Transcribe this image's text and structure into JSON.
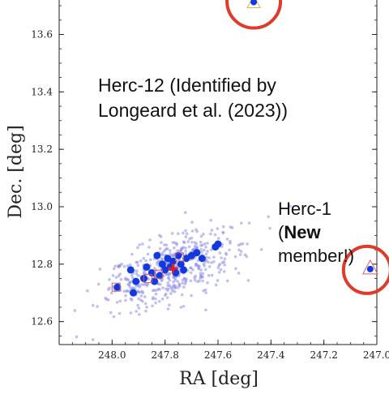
{
  "chart_data": {
    "type": "scatter",
    "xlabel": "RA [deg]",
    "ylabel": "Dec. [deg]",
    "xlim": [
      248.2,
      247.0
    ],
    "ylim": [
      12.52,
      13.72
    ],
    "x_ticks": [
      "248.0",
      "247.8",
      "247.6",
      "247.4",
      "247.2",
      "247.0"
    ],
    "y_ticks": [
      "12.6",
      "12.8",
      "13.0",
      "13.2",
      "13.4",
      "13.6"
    ],
    "annotations": {
      "herc12_line1": "Herc-12 (Identified by",
      "herc12_line2": "Longeard et al. (2023))",
      "herc1_line1": "Herc-1",
      "herc1_open": "(",
      "herc1_bold": "New",
      "herc1_line3": "member!)"
    },
    "colors": {
      "members": "#1239e0",
      "background": "#8c8ce6",
      "circle": "#e03a2a",
      "center": "#e02020",
      "square": "#d45a6a",
      "triangle_top": "#d9b84a",
      "triangle_right": "#d06070"
    },
    "background_cloud": {
      "count": 520,
      "center": [
        247.78,
        12.78
      ],
      "spread": [
        0.13,
        0.055
      ],
      "tilt": 0.35
    },
    "members": [
      {
        "ra": 247.98,
        "dec": 12.72
      },
      {
        "ra": 247.93,
        "dec": 12.78
      },
      {
        "ra": 247.92,
        "dec": 12.7
      },
      {
        "ra": 247.91,
        "dec": 12.74
      },
      {
        "ra": 247.88,
        "dec": 12.75
      },
      {
        "ra": 247.87,
        "dec": 12.79
      },
      {
        "ra": 247.85,
        "dec": 12.77
      },
      {
        "ra": 247.84,
        "dec": 12.74
      },
      {
        "ra": 247.83,
        "dec": 12.83
      },
      {
        "ra": 247.82,
        "dec": 12.76
      },
      {
        "ra": 247.81,
        "dec": 12.8
      },
      {
        "ra": 247.8,
        "dec": 12.78
      },
      {
        "ra": 247.79,
        "dec": 12.82
      },
      {
        "ra": 247.78,
        "dec": 12.79
      },
      {
        "ra": 247.77,
        "dec": 12.81
      },
      {
        "ra": 247.76,
        "dec": 12.77
      },
      {
        "ra": 247.75,
        "dec": 12.83
      },
      {
        "ra": 247.74,
        "dec": 12.8
      },
      {
        "ra": 247.73,
        "dec": 12.78
      },
      {
        "ra": 247.72,
        "dec": 12.82
      },
      {
        "ra": 247.7,
        "dec": 12.83
      },
      {
        "ra": 247.68,
        "dec": 12.84
      },
      {
        "ra": 247.66,
        "dec": 12.82
      },
      {
        "ra": 247.61,
        "dec": 12.86
      },
      {
        "ra": 247.6,
        "dec": 12.87
      }
    ],
    "squares": [
      {
        "ra": 247.985,
        "dec": 12.72
      },
      {
        "ra": 247.865,
        "dec": 12.75
      },
      {
        "ra": 247.825,
        "dec": 12.765
      },
      {
        "ra": 247.745,
        "dec": 12.825
      }
    ],
    "center": {
      "ra": 247.77,
      "dec": 12.785
    },
    "herc1": {
      "ra": 247.025,
      "dec": 12.78
    },
    "top_member": {
      "ra": 247.465,
      "dec": 13.71
    }
  }
}
